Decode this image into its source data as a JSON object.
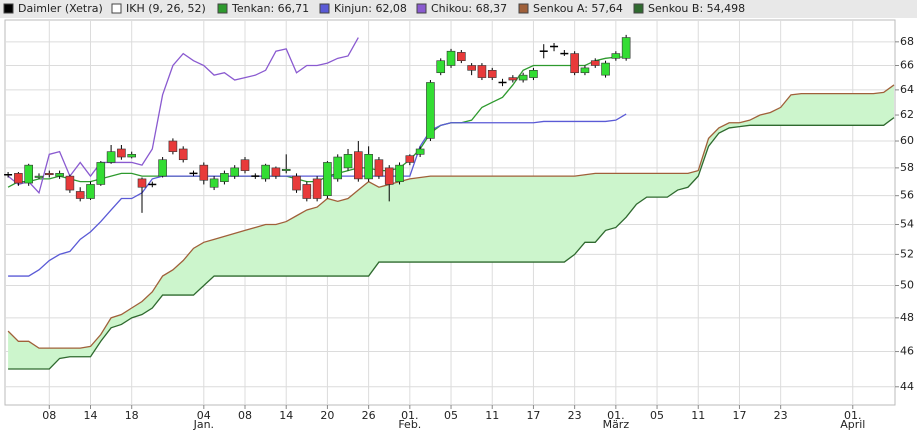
{
  "chart_data": {
    "type": "candlestick",
    "log_y": true,
    "grid": true,
    "ylim": [
      43,
      69.9
    ],
    "yticks": [
      44,
      46,
      48,
      50,
      52,
      54,
      56,
      58,
      60,
      62,
      64,
      66,
      68
    ],
    "xlim": [
      -0.3,
      86.1
    ],
    "xticks": [
      {
        "value": 4,
        "label": "08"
      },
      {
        "value": 8,
        "label": "14"
      },
      {
        "value": 12,
        "label": "18"
      },
      {
        "value": 19,
        "label": "04"
      },
      {
        "value": 23,
        "label": "08"
      },
      {
        "value": 27,
        "label": "14"
      },
      {
        "value": 31,
        "label": "20"
      },
      {
        "value": 35,
        "label": "26"
      },
      {
        "value": 39,
        "label": "01."
      },
      {
        "value": 43,
        "label": "05"
      },
      {
        "value": 47,
        "label": "11"
      },
      {
        "value": 51,
        "label": "17"
      },
      {
        "value": 55,
        "label": "23"
      },
      {
        "value": 59,
        "label": "01."
      },
      {
        "value": 63,
        "label": "05"
      },
      {
        "value": 67,
        "label": "11"
      },
      {
        "value": 71,
        "label": "17"
      },
      {
        "value": 75,
        "label": "23"
      },
      {
        "value": 82,
        "label": "01."
      }
    ],
    "month_labels": [
      {
        "value": 19,
        "label": "Jan."
      },
      {
        "value": 39,
        "label": "Feb."
      },
      {
        "value": 59,
        "label": "März"
      },
      {
        "value": 82,
        "label": "April"
      }
    ],
    "cloud_color": "#ccf5cc",
    "indicator": {
      "name": "IKH (9, 26, 52)",
      "color": "#ffffff"
    },
    "candles": {
      "name": "Daimler (Xetra)",
      "color": "#000000",
      "up_color": "#33dd33",
      "down_color": "#e83a3a",
      "open": [
        57.5,
        57.6,
        56.9,
        57.3,
        57.6,
        57.4,
        57.4,
        56.3,
        55.8,
        56.8,
        58.4,
        59.4,
        58.8,
        57.2,
        56.8,
        57.4,
        60.0,
        59.4,
        57.6,
        58.2,
        56.6,
        57.0,
        57.4,
        58.6,
        57.4,
        57.2,
        58.0,
        57.8,
        57.4,
        56.8,
        57.2,
        56.0,
        57.2,
        58.0,
        59.2,
        57.2,
        58.6,
        58.0,
        57.0,
        58.9,
        59.0,
        60.2,
        65.4,
        66.0,
        67.1,
        66.0,
        66.0,
        65.6,
        64.6,
        65.0,
        64.8,
        65.0,
        67.2,
        67.6,
        67.0,
        67.0,
        65.4,
        66.4,
        65.2,
        66.6,
        66.6
      ],
      "high": [
        57.7,
        57.7,
        58.3,
        57.6,
        57.8,
        57.8,
        57.5,
        56.6,
        57.0,
        58.5,
        59.7,
        59.7,
        59.2,
        57.3,
        57.0,
        58.8,
        60.2,
        59.6,
        57.8,
        58.4,
        57.4,
        57.8,
        58.2,
        58.8,
        57.6,
        58.3,
        58.1,
        59.0,
        57.6,
        57.0,
        57.4,
        58.5,
        59.0,
        59.4,
        60.0,
        59.6,
        58.8,
        58.2,
        58.4,
        59.0,
        59.6,
        64.8,
        66.6,
        67.4,
        67.3,
        66.2,
        66.2,
        65.8,
        64.9,
        65.2,
        65.4,
        65.8,
        67.8,
        67.9,
        67.3,
        67.2,
        66.0,
        66.6,
        66.4,
        67.2,
        68.6
      ],
      "low": [
        57.3,
        56.7,
        56.7,
        57.2,
        57.3,
        57.2,
        56.2,
        55.6,
        55.7,
        56.7,
        58.3,
        58.6,
        58.7,
        54.8,
        56.6,
        57.3,
        59.0,
        58.4,
        57.4,
        56.8,
        56.4,
        56.8,
        57.2,
        57.6,
        57.2,
        57.0,
        57.2,
        57.6,
        56.2,
        55.6,
        55.6,
        55.8,
        57.0,
        57.8,
        57.0,
        57.0,
        57.2,
        55.6,
        56.8,
        58.2,
        58.8,
        60.0,
        65.2,
        65.8,
        66.2,
        65.2,
        64.8,
        64.8,
        64.3,
        64.6,
        64.6,
        64.8,
        66.6,
        67.2,
        66.8,
        65.2,
        65.2,
        65.8,
        65.0,
        66.4,
        66.4
      ],
      "close": [
        57.5,
        56.9,
        58.2,
        57.4,
        57.5,
        57.6,
        56.4,
        55.8,
        56.8,
        58.4,
        59.2,
        58.8,
        59.0,
        56.6,
        56.8,
        58.6,
        59.2,
        58.6,
        57.6,
        57.1,
        57.2,
        57.6,
        58.0,
        57.8,
        57.4,
        58.2,
        57.4,
        57.9,
        56.4,
        55.8,
        55.8,
        58.4,
        58.8,
        59.0,
        57.2,
        59.0,
        57.4,
        56.8,
        58.2,
        58.4,
        59.4,
        64.6,
        66.4,
        67.2,
        66.4,
        65.6,
        65.0,
        65.0,
        64.6,
        64.8,
        65.2,
        65.6,
        67.2,
        67.6,
        67.0,
        65.4,
        65.8,
        66.0,
        66.2,
        67.0,
        68.37
      ]
    },
    "series": [
      {
        "name": "Tenkan: 66,71",
        "color": "#2e9a2e",
        "values": [
          56.6,
          57.0,
          57.0,
          57.2,
          57.2,
          57.4,
          57.2,
          57.0,
          57.0,
          57.2,
          57.4,
          57.6,
          57.6,
          57.4,
          57.4,
          57.4,
          57.4,
          57.4,
          57.4,
          57.4,
          57.4,
          57.4,
          57.4,
          57.4,
          57.4,
          57.4,
          57.4,
          57.4,
          57.2,
          57.0,
          57.0,
          57.4,
          57.6,
          57.8,
          58.0,
          58.0,
          57.8,
          57.8,
          58.0,
          58.6,
          59.4,
          60.6,
          61.2,
          61.4,
          61.4,
          61.6,
          62.6,
          63.0,
          63.4,
          64.4,
          65.6,
          66.0,
          66.0,
          66.0,
          66.0,
          66.0,
          66.0,
          66.4,
          66.6,
          66.7,
          66.71
        ]
      },
      {
        "name": "Kinjun: 62,08",
        "color": "#5a5ad6",
        "values": [
          50.6,
          50.6,
          50.6,
          51.0,
          51.6,
          52.0,
          52.2,
          53.0,
          53.5,
          54.2,
          55.0,
          55.8,
          55.8,
          56.2,
          57.2,
          57.4,
          57.4,
          57.4,
          57.4,
          57.4,
          57.4,
          57.4,
          57.4,
          57.4,
          57.4,
          57.4,
          57.4,
          57.4,
          57.4,
          57.4,
          57.4,
          57.4,
          57.4,
          57.4,
          57.4,
          57.4,
          57.4,
          57.4,
          57.4,
          57.4,
          59.6,
          60.8,
          61.2,
          61.4,
          61.4,
          61.4,
          61.4,
          61.4,
          61.4,
          61.4,
          61.4,
          61.4,
          61.5,
          61.5,
          61.5,
          61.5,
          61.5,
          61.5,
          61.5,
          61.6,
          62.08
        ]
      },
      {
        "name": "Chikou: 68,37",
        "color": "#8a5ad0",
        "values": [
          57.4,
          56.8,
          57.0,
          56.2,
          59.0,
          59.2,
          57.4,
          58.4,
          57.4,
          58.4,
          58.4,
          58.4,
          58.4,
          58.2,
          59.4,
          63.6,
          66.0,
          67.0,
          66.4,
          66.0,
          65.2,
          65.4,
          64.8,
          65.0,
          65.2,
          65.6,
          67.2,
          67.4,
          65.4,
          66.0,
          66.0,
          66.2,
          66.6,
          66.8,
          68.37
        ]
      },
      {
        "name": "Senkou A: 57,64",
        "color": "#a0603a",
        "values": [
          47.2,
          46.6,
          46.6,
          46.2,
          46.2,
          46.2,
          46.2,
          46.2,
          46.3,
          47.0,
          48.0,
          48.2,
          48.6,
          49.0,
          49.6,
          50.6,
          51.0,
          51.6,
          52.4,
          52.8,
          53.0,
          53.2,
          53.4,
          53.6,
          53.8,
          54.0,
          54.0,
          54.2,
          54.6,
          55.0,
          55.2,
          55.8,
          55.6,
          55.8,
          56.4,
          57.0,
          56.6,
          56.8,
          57.0,
          57.2,
          57.3,
          57.4,
          57.4,
          57.4,
          57.4,
          57.4,
          57.4,
          57.4,
          57.4,
          57.4,
          57.4,
          57.4,
          57.4,
          57.4,
          57.4,
          57.4,
          57.5,
          57.6,
          57.6,
          57.6,
          57.6,
          57.6,
          57.6,
          57.6,
          57.6,
          57.6,
          57.6,
          57.8,
          60.2,
          61.0,
          61.4,
          61.4,
          61.6,
          62.0,
          62.2,
          62.6,
          63.6,
          63.7,
          63.7,
          63.7,
          63.7,
          63.7,
          63.7,
          63.7,
          63.7,
          63.8,
          64.4
        ]
      },
      {
        "name": "Senkou B: 54,498",
        "color": "#2f6a2f",
        "values": [
          45,
          45,
          45,
          45,
          45,
          45.6,
          45.7,
          45.7,
          45.7,
          46.6,
          47.4,
          47.6,
          48,
          48.2,
          48.6,
          49.4,
          49.4,
          49.4,
          49.4,
          50,
          50.6,
          50.6,
          50.6,
          50.6,
          50.6,
          50.6,
          50.6,
          50.6,
          50.6,
          50.6,
          50.6,
          50.6,
          50.6,
          50.6,
          50.6,
          50.6,
          51.5,
          51.5,
          51.5,
          51.5,
          51.5,
          51.5,
          51.5,
          51.5,
          51.5,
          51.5,
          51.5,
          51.5,
          51.5,
          51.5,
          51.5,
          51.5,
          51.5,
          51.5,
          51.5,
          52,
          52.8,
          52.8,
          53.6,
          53.8,
          54.5,
          55.4,
          55.9,
          55.9,
          55.9,
          56.4,
          56.6,
          57.4,
          59.6,
          60.6,
          61,
          61.1,
          61.2,
          61.2,
          61.2,
          61.2,
          61.2,
          61.2,
          61.2,
          61.2,
          61.2,
          61.2,
          61.2,
          61.2,
          61.2,
          61.2,
          61.8
        ]
      }
    ]
  }
}
